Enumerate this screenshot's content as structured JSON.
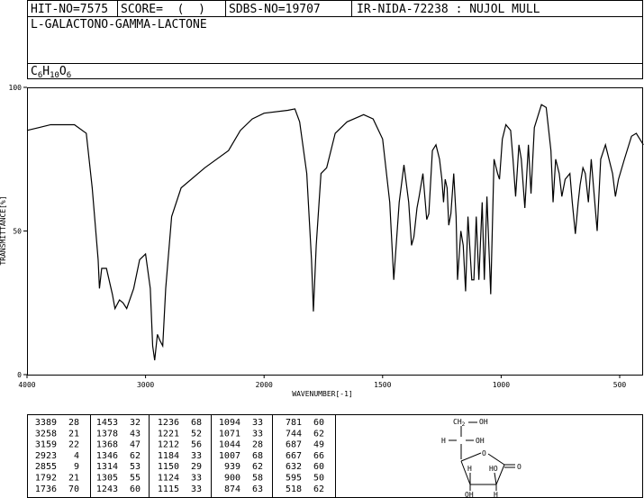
{
  "header": {
    "hit": "HIT-NO=7575",
    "score": "SCORE=  (  )",
    "sdbs": "SDBS-NO=19707",
    "method": "IR-NIDA-72238 : NUJOL MULL",
    "name": "L-GALACTONO-GAMMA-LACTONE",
    "formula": [
      "C",
      "6",
      "H",
      "10",
      "O",
      "6"
    ]
  },
  "chart_data": {
    "type": "line",
    "xlabel": "WAVENUMBER[-1]",
    "ylabel": "TRANSMITTANCE[%]",
    "xlim": [
      4000,
      400
    ],
    "xticks": [
      4000,
      3000,
      2000,
      1500,
      1000,
      500
    ],
    "ylim": [
      0,
      100
    ],
    "yticks": [
      0,
      50,
      100
    ],
    "series": [
      {
        "color": "#000000",
        "x": [
          4000,
          3900,
          3800,
          3600,
          3500,
          3450,
          3400,
          3389,
          3370,
          3330,
          3280,
          3258,
          3220,
          3190,
          3159,
          3100,
          3050,
          3000,
          2960,
          2940,
          2923,
          2900,
          2880,
          2855,
          2830,
          2780,
          2700,
          2500,
          2300,
          2200,
          2100,
          2000,
          1900,
          1870,
          1850,
          1820,
          1800,
          1792,
          1780,
          1760,
          1736,
          1700,
          1650,
          1580,
          1540,
          1500,
          1470,
          1453,
          1430,
          1410,
          1390,
          1378,
          1368,
          1355,
          1346,
          1330,
          1314,
          1305,
          1290,
          1275,
          1260,
          1250,
          1243,
          1236,
          1228,
          1221,
          1212,
          1200,
          1190,
          1184,
          1170,
          1160,
          1150,
          1140,
          1124,
          1115,
          1105,
          1094,
          1080,
          1071,
          1060,
          1044,
          1030,
          1015,
          1007,
          995,
          980,
          960,
          950,
          939,
          925,
          915,
          900,
          885,
          874,
          860,
          830,
          810,
          790,
          781,
          770,
          755,
          744,
          730,
          710,
          700,
          687,
          675,
          667,
          655,
          645,
          632,
          620,
          610,
          595,
          580,
          560,
          530,
          518,
          505,
          480,
          450,
          430,
          400
        ],
        "values": [
          85,
          86,
          87,
          87,
          84,
          65,
          40,
          30,
          37,
          37,
          28,
          23,
          26,
          25,
          23,
          30,
          40,
          42,
          30,
          10,
          5,
          14,
          12,
          10,
          30,
          55,
          65,
          72,
          78,
          85,
          89,
          91,
          92,
          92.5,
          88,
          70,
          40,
          22,
          45,
          70,
          72,
          84,
          88,
          90.5,
          89,
          82,
          60,
          33,
          60,
          73,
          60,
          45,
          48,
          58,
          62,
          70,
          54,
          56,
          78,
          80,
          75,
          68,
          60,
          68,
          65,
          52,
          56,
          70,
          55,
          33,
          50,
          45,
          29,
          55,
          33,
          33,
          55,
          33,
          60,
          33,
          62,
          28,
          75,
          70,
          68,
          82,
          87,
          85,
          75,
          62,
          80,
          75,
          58,
          80,
          63,
          86,
          94,
          93,
          78,
          60,
          75,
          70,
          62,
          68,
          70,
          60,
          49,
          60,
          66,
          72,
          70,
          60,
          75,
          65,
          50,
          75,
          80,
          70,
          62,
          68,
          75,
          83,
          84,
          80
        ]
      }
    ]
  },
  "table": {
    "rows": [
      [
        3389,
        28,
        1453,
        32,
        1236,
        68,
        1094,
        33,
        781,
        60
      ],
      [
        3258,
        21,
        1378,
        43,
        1221,
        52,
        1071,
        33,
        744,
        62
      ],
      [
        3159,
        22,
        1368,
        47,
        1212,
        56,
        1044,
        28,
        687,
        49
      ],
      [
        2923,
        4,
        1346,
        62,
        1184,
        33,
        1007,
        68,
        667,
        66
      ],
      [
        2855,
        9,
        1314,
        53,
        1150,
        29,
        939,
        62,
        632,
        60
      ],
      [
        1792,
        21,
        1305,
        55,
        1124,
        33,
        900,
        58,
        595,
        50
      ],
      [
        1736,
        70,
        1243,
        60,
        1115,
        33,
        874,
        63,
        518,
        62
      ]
    ]
  },
  "structure": {
    "ch2": "CH",
    "ch2sub": "2",
    "oh1": "OH",
    "h1": "H",
    "oh2": "OH",
    "o_ring": "O",
    "o_co": "O",
    "ho": "HO",
    "h2": "H",
    "oh3": "OH",
    "h3": "H"
  }
}
